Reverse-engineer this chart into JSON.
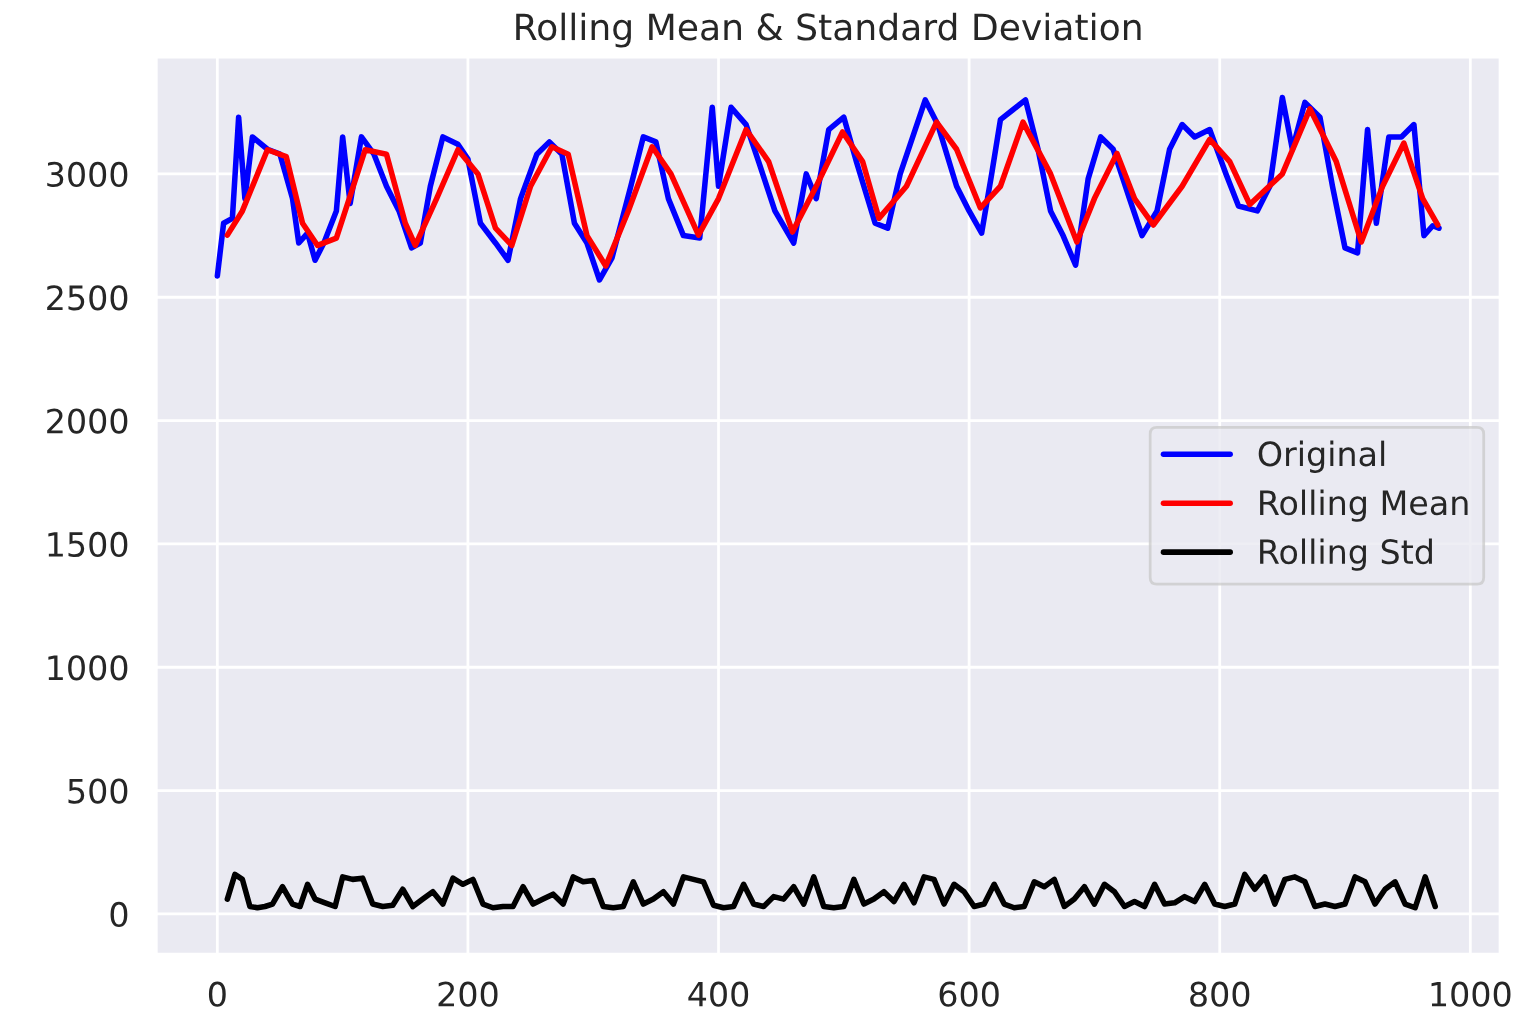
{
  "chart_data": {
    "type": "line",
    "title": "Rolling Mean & Standard Deviation",
    "xlim": [
      -49,
      1024
    ],
    "xticks": [
      0,
      200,
      400,
      600,
      800,
      1000
    ],
    "ylim": [
      -165,
      3475
    ],
    "yticks": [
      0,
      500,
      1000,
      1500,
      2000,
      2500,
      3000
    ],
    "grid": true,
    "legend": "right",
    "line_style": "solid",
    "marker": "none",
    "series": [
      {
        "name": "Original",
        "color": "#0000ff",
        "x": [
          0,
          5,
          12,
          17,
          22,
          28,
          40,
          50,
          60,
          65,
          72,
          78,
          85,
          95,
          100,
          106,
          115,
          125,
          135,
          145,
          155,
          162,
          170,
          180,
          192,
          200,
          210,
          222,
          232,
          242,
          255,
          265,
          275,
          285,
          295,
          305,
          315,
          330,
          340,
          350,
          360,
          372,
          385,
          395,
          400,
          410,
          422,
          432,
          445,
          460,
          470,
          478,
          488,
          500,
          510,
          525,
          535,
          545,
          555,
          565,
          575,
          590,
          600,
          610,
          618,
          625,
          635,
          645,
          655,
          665,
          675,
          685,
          695,
          705,
          715,
          728,
          738,
          750,
          760,
          770,
          780,
          792,
          805,
          815,
          830,
          840,
          850,
          858,
          868,
          880,
          890,
          900,
          910,
          918,
          925,
          935,
          945,
          955,
          963,
          970,
          975
        ],
        "values": [
          2586,
          2800,
          2820,
          3230,
          2900,
          3150,
          3100,
          3080,
          2900,
          2720,
          2760,
          2650,
          2720,
          2850,
          3150,
          2880,
          3150,
          3080,
          2950,
          2850,
          2700,
          2720,
          2950,
          3150,
          3120,
          3060,
          2800,
          2720,
          2650,
          2900,
          3080,
          3130,
          3080,
          2800,
          2720,
          2570,
          2660,
          2950,
          3150,
          3130,
          2900,
          2750,
          2740,
          3270,
          2950,
          3270,
          3200,
          3050,
          2850,
          2720,
          3000,
          2900,
          3180,
          3230,
          3050,
          2800,
          2780,
          3000,
          3150,
          3300,
          3200,
          2950,
          2850,
          2760,
          3000,
          3220,
          3260,
          3300,
          3100,
          2850,
          2750,
          2630,
          2980,
          3150,
          3100,
          2900,
          2750,
          2850,
          3100,
          3200,
          3150,
          3180,
          3000,
          2870,
          2850,
          2950,
          3310,
          3100,
          3290,
          3230,
          2950,
          2700,
          2680,
          3180,
          2800,
          3150,
          3150,
          3200,
          2750,
          2790,
          2780
        ]
      },
      {
        "name": "Rolling Mean",
        "color": "#ff0000",
        "x": [
          8,
          20,
          40,
          55,
          68,
          80,
          95,
          118,
          135,
          150,
          158,
          175,
          192,
          208,
          222,
          235,
          250,
          267,
          280,
          295,
          310,
          328,
          347,
          362,
          384,
          400,
          422,
          440,
          459,
          478,
          499,
          515,
          528,
          550,
          574,
          590,
          609,
          625,
          643,
          665,
          686,
          700,
          718,
          732,
          747,
          770,
          792,
          808,
          824,
          850,
          872,
          893,
          913,
          930,
          947,
          962,
          974
        ],
        "values": [
          2752,
          2850,
          3098,
          3070,
          2800,
          2710,
          2740,
          3098,
          3080,
          2800,
          2710,
          2900,
          3098,
          3000,
          2780,
          2710,
          2950,
          3110,
          3080,
          2750,
          2627,
          2850,
          3110,
          3000,
          2752,
          2900,
          3180,
          3050,
          2765,
          2950,
          3170,
          3050,
          2820,
          2950,
          3210,
          3100,
          2862,
          2950,
          3210,
          3000,
          2724,
          2900,
          3083,
          2900,
          2793,
          2950,
          3140,
          3050,
          2876,
          3000,
          3264,
          3050,
          2724,
          2950,
          3125,
          2900,
          2793
        ]
      },
      {
        "name": "Rolling Std",
        "color": "#000000",
        "x": [
          8,
          14,
          20,
          26,
          32,
          38,
          44,
          52,
          60,
          66,
          72,
          78,
          86,
          94,
          100,
          108,
          116,
          124,
          132,
          140,
          148,
          156,
          164,
          172,
          180,
          188,
          196,
          204,
          212,
          220,
          228,
          236,
          244,
          252,
          260,
          268,
          276,
          284,
          292,
          300,
          308,
          316,
          324,
          332,
          340,
          348,
          356,
          364,
          372,
          380,
          388,
          396,
          404,
          412,
          420,
          428,
          436,
          444,
          452,
          460,
          468,
          476,
          484,
          492,
          500,
          508,
          516,
          524,
          532,
          540,
          548,
          556,
          564,
          572,
          580,
          588,
          596,
          604,
          612,
          620,
          628,
          636,
          644,
          652,
          660,
          668,
          676,
          684,
          692,
          700,
          708,
          716,
          724,
          732,
          740,
          748,
          756,
          764,
          772,
          780,
          788,
          796,
          804,
          812,
          820,
          828,
          836,
          844,
          852,
          860,
          868,
          876,
          884,
          892,
          900,
          908,
          916,
          924,
          932,
          940,
          948,
          956,
          964,
          972
        ],
        "values": [
          60,
          160,
          140,
          30,
          25,
          30,
          40,
          110,
          40,
          30,
          120,
          60,
          45,
          30,
          150,
          140,
          145,
          40,
          30,
          35,
          100,
          30,
          60,
          90,
          40,
          145,
          120,
          140,
          40,
          25,
          30,
          30,
          110,
          40,
          60,
          80,
          40,
          150,
          130,
          135,
          30,
          25,
          30,
          130,
          40,
          60,
          90,
          40,
          150,
          140,
          130,
          35,
          25,
          30,
          120,
          40,
          30,
          70,
          60,
          110,
          40,
          150,
          30,
          25,
          30,
          140,
          40,
          60,
          90,
          50,
          120,
          45,
          150,
          140,
          40,
          120,
          90,
          30,
          40,
          120,
          40,
          25,
          30,
          130,
          110,
          140,
          30,
          60,
          110,
          40,
          120,
          90,
          30,
          50,
          30,
          120,
          40,
          45,
          70,
          50,
          120,
          40,
          30,
          40,
          160,
          100,
          150,
          40,
          140,
          150,
          130,
          30,
          40,
          30,
          40,
          150,
          130,
          40,
          100,
          130,
          40,
          25,
          150,
          30
        ]
      }
    ]
  }
}
